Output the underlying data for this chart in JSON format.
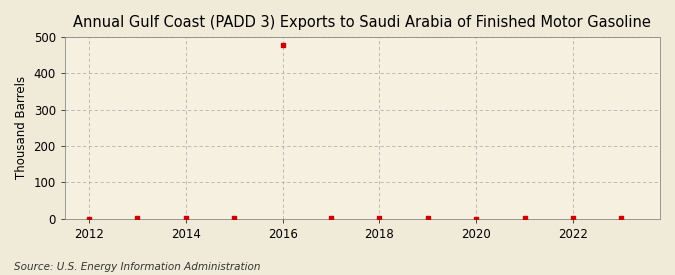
{
  "title": "Annual Gulf Coast (PADD 3) Exports to Saudi Arabia of Finished Motor Gasoline",
  "ylabel": "Thousand Barrels",
  "source": "Source: U.S. Energy Information Administration",
  "background_color": "#f0ead8",
  "plot_background_color": "#f5f0e0",
  "years": [
    2012,
    2013,
    2014,
    2015,
    2016,
    2017,
    2018,
    2019,
    2020,
    2021,
    2022,
    2023
  ],
  "values": [
    0,
    3,
    2,
    3,
    476,
    2,
    3,
    2,
    0,
    3,
    3,
    3
  ],
  "marker_color": "#cc0000",
  "ylim": [
    0,
    500
  ],
  "yticks": [
    0,
    100,
    200,
    300,
    400,
    500
  ],
  "xlim": [
    2011.5,
    2023.8
  ],
  "xticks": [
    2012,
    2014,
    2016,
    2018,
    2020,
    2022
  ],
  "grid_color": "#aaaaaa",
  "title_fontsize": 10.5,
  "label_fontsize": 8.5,
  "tick_fontsize": 8.5,
  "source_fontsize": 7.5
}
